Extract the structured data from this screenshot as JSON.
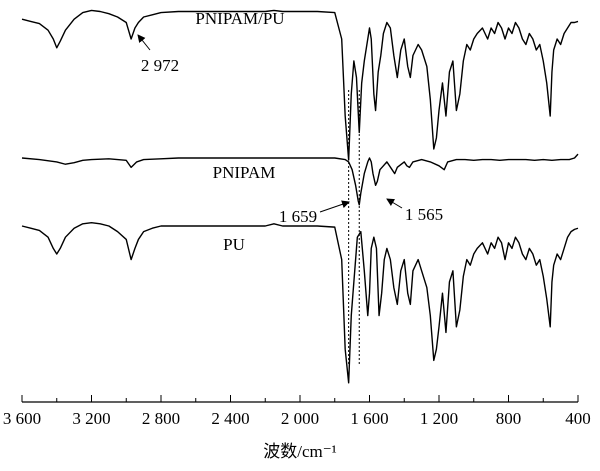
{
  "chart_data": {
    "type": "line",
    "title": "",
    "xlabel": "波数/cm⁻¹",
    "ylabel": "",
    "xlim": [
      3600,
      400
    ],
    "x_reversed": true,
    "grid": false,
    "legend": "none",
    "line_color": "#000000",
    "x_ticks": [
      {
        "value": 3600,
        "label": "3 600"
      },
      {
        "value": 3200,
        "label": "3 200"
      },
      {
        "value": 2800,
        "label": "2 800"
      },
      {
        "value": 2400,
        "label": "2 400"
      },
      {
        "value": 2000,
        "label": "2 000"
      },
      {
        "value": 1600,
        "label": "1 600"
      },
      {
        "value": 1200,
        "label": "1 200"
      },
      {
        "value": 800,
        "label": "800"
      },
      {
        "value": 400,
        "label": "400"
      }
    ],
    "reference_lines": [
      1720,
      1659
    ],
    "series": [
      {
        "name": "PNIPAM/PU",
        "baseline": 0.0,
        "points": [
          [
            3600,
            0.02
          ],
          [
            3550,
            0.04
          ],
          [
            3500,
            0.06
          ],
          [
            3450,
            0.12
          ],
          [
            3420,
            0.2
          ],
          [
            3400,
            0.28
          ],
          [
            3380,
            0.22
          ],
          [
            3350,
            0.12
          ],
          [
            3300,
            0.02
          ],
          [
            3250,
            -0.04
          ],
          [
            3200,
            -0.06
          ],
          [
            3150,
            -0.05
          ],
          [
            3100,
            -0.03
          ],
          [
            3050,
            0.0
          ],
          [
            3000,
            0.05
          ],
          [
            2972,
            0.2
          ],
          [
            2950,
            0.1
          ],
          [
            2930,
            0.05
          ],
          [
            2900,
            0.0
          ],
          [
            2850,
            -0.02
          ],
          [
            2800,
            -0.04
          ],
          [
            2700,
            -0.05
          ],
          [
            2600,
            -0.05
          ],
          [
            2500,
            -0.05
          ],
          [
            2400,
            -0.05
          ],
          [
            2300,
            -0.05
          ],
          [
            2200,
            -0.05
          ],
          [
            2150,
            -0.06
          ],
          [
            2100,
            -0.05
          ],
          [
            2000,
            -0.05
          ],
          [
            1900,
            -0.05
          ],
          [
            1800,
            -0.04
          ],
          [
            1760,
            0.2
          ],
          [
            1740,
            0.9
          ],
          [
            1720,
            1.3
          ],
          [
            1705,
            0.7
          ],
          [
            1690,
            0.4
          ],
          [
            1675,
            0.55
          ],
          [
            1659,
            1.05
          ],
          [
            1645,
            0.6
          ],
          [
            1630,
            0.4
          ],
          [
            1610,
            0.2
          ],
          [
            1600,
            0.1
          ],
          [
            1590,
            0.2
          ],
          [
            1575,
            0.7
          ],
          [
            1565,
            0.85
          ],
          [
            1550,
            0.5
          ],
          [
            1535,
            0.35
          ],
          [
            1520,
            0.15
          ],
          [
            1500,
            0.05
          ],
          [
            1480,
            0.1
          ],
          [
            1460,
            0.35
          ],
          [
            1440,
            0.55
          ],
          [
            1420,
            0.3
          ],
          [
            1400,
            0.2
          ],
          [
            1380,
            0.45
          ],
          [
            1365,
            0.55
          ],
          [
            1350,
            0.35
          ],
          [
            1320,
            0.25
          ],
          [
            1300,
            0.3
          ],
          [
            1270,
            0.45
          ],
          [
            1250,
            0.75
          ],
          [
            1230,
            1.2
          ],
          [
            1215,
            1.1
          ],
          [
            1200,
            0.85
          ],
          [
            1180,
            0.6
          ],
          [
            1160,
            0.9
          ],
          [
            1140,
            0.5
          ],
          [
            1120,
            0.4
          ],
          [
            1100,
            0.85
          ],
          [
            1080,
            0.7
          ],
          [
            1060,
            0.4
          ],
          [
            1040,
            0.25
          ],
          [
            1020,
            0.3
          ],
          [
            1000,
            0.2
          ],
          [
            980,
            0.15
          ],
          [
            950,
            0.1
          ],
          [
            920,
            0.2
          ],
          [
            900,
            0.1
          ],
          [
            880,
            0.15
          ],
          [
            860,
            0.05
          ],
          [
            840,
            0.1
          ],
          [
            820,
            0.2
          ],
          [
            800,
            0.1
          ],
          [
            780,
            0.15
          ],
          [
            760,
            0.05
          ],
          [
            740,
            0.1
          ],
          [
            720,
            0.2
          ],
          [
            700,
            0.25
          ],
          [
            680,
            0.15
          ],
          [
            660,
            0.2
          ],
          [
            640,
            0.3
          ],
          [
            620,
            0.25
          ],
          [
            600,
            0.4
          ],
          [
            580,
            0.6
          ],
          [
            560,
            0.9
          ],
          [
            550,
            0.5
          ],
          [
            540,
            0.3
          ],
          [
            520,
            0.2
          ],
          [
            500,
            0.25
          ],
          [
            480,
            0.15
          ],
          [
            460,
            0.1
          ],
          [
            440,
            0.05
          ],
          [
            420,
            0.05
          ],
          [
            400,
            0.04
          ]
        ]
      },
      {
        "name": "PNIPAM",
        "baseline": 0.0,
        "points": [
          [
            3600,
            0.0
          ],
          [
            3500,
            0.02
          ],
          [
            3400,
            0.05
          ],
          [
            3350,
            0.08
          ],
          [
            3300,
            0.06
          ],
          [
            3250,
            0.03
          ],
          [
            3200,
            0.02
          ],
          [
            3100,
            0.01
          ],
          [
            3000,
            0.03
          ],
          [
            2972,
            0.12
          ],
          [
            2940,
            0.05
          ],
          [
            2900,
            0.02
          ],
          [
            2800,
            0.01
          ],
          [
            2700,
            0.0
          ],
          [
            2600,
            0.0
          ],
          [
            2500,
            0.0
          ],
          [
            2400,
            0.0
          ],
          [
            2300,
            0.0
          ],
          [
            2200,
            0.0
          ],
          [
            2100,
            0.0
          ],
          [
            2000,
            0.0
          ],
          [
            1900,
            0.0
          ],
          [
            1800,
            0.0
          ],
          [
            1740,
            0.02
          ],
          [
            1720,
            0.05
          ],
          [
            1700,
            0.15
          ],
          [
            1680,
            0.35
          ],
          [
            1665,
            0.55
          ],
          [
            1659,
            0.6
          ],
          [
            1650,
            0.45
          ],
          [
            1630,
            0.2
          ],
          [
            1610,
            0.05
          ],
          [
            1600,
            0.0
          ],
          [
            1590,
            0.05
          ],
          [
            1580,
            0.2
          ],
          [
            1565,
            0.35
          ],
          [
            1555,
            0.3
          ],
          [
            1540,
            0.15
          ],
          [
            1520,
            0.1
          ],
          [
            1500,
            0.05
          ],
          [
            1470,
            0.15
          ],
          [
            1455,
            0.2
          ],
          [
            1440,
            0.12
          ],
          [
            1400,
            0.05
          ],
          [
            1385,
            0.1
          ],
          [
            1370,
            0.12
          ],
          [
            1350,
            0.05
          ],
          [
            1300,
            0.02
          ],
          [
            1250,
            0.05
          ],
          [
            1200,
            0.1
          ],
          [
            1170,
            0.15
          ],
          [
            1150,
            0.05
          ],
          [
            1100,
            0.02
          ],
          [
            1050,
            0.02
          ],
          [
            1000,
            0.03
          ],
          [
            950,
            0.02
          ],
          [
            900,
            0.02
          ],
          [
            850,
            0.03
          ],
          [
            800,
            0.02
          ],
          [
            750,
            0.02
          ],
          [
            700,
            0.02
          ],
          [
            650,
            0.03
          ],
          [
            600,
            0.02
          ],
          [
            550,
            0.03
          ],
          [
            500,
            0.02
          ],
          [
            450,
            0.02
          ],
          [
            420,
            0.0
          ],
          [
            400,
            -0.05
          ]
        ]
      },
      {
        "name": "PU",
        "baseline": 0.0,
        "points": [
          [
            3600,
            0.0
          ],
          [
            3550,
            0.02
          ],
          [
            3500,
            0.04
          ],
          [
            3450,
            0.1
          ],
          [
            3420,
            0.2
          ],
          [
            3400,
            0.25
          ],
          [
            3380,
            0.2
          ],
          [
            3350,
            0.1
          ],
          [
            3300,
            0.02
          ],
          [
            3250,
            -0.02
          ],
          [
            3200,
            -0.03
          ],
          [
            3150,
            -0.02
          ],
          [
            3100,
            0.0
          ],
          [
            3050,
            0.05
          ],
          [
            3000,
            0.12
          ],
          [
            2972,
            0.3
          ],
          [
            2950,
            0.2
          ],
          [
            2930,
            0.12
          ],
          [
            2900,
            0.05
          ],
          [
            2850,
            0.02
          ],
          [
            2800,
            0.0
          ],
          [
            2700,
            0.0
          ],
          [
            2600,
            0.0
          ],
          [
            2500,
            0.0
          ],
          [
            2400,
            0.0
          ],
          [
            2300,
            0.0
          ],
          [
            2200,
            0.0
          ],
          [
            2150,
            -0.02
          ],
          [
            2100,
            0.0
          ],
          [
            2000,
            0.0
          ],
          [
            1900,
            0.0
          ],
          [
            1800,
            0.01
          ],
          [
            1760,
            0.3
          ],
          [
            1740,
            1.1
          ],
          [
            1720,
            1.4
          ],
          [
            1705,
            0.8
          ],
          [
            1690,
            0.5
          ],
          [
            1680,
            0.3
          ],
          [
            1670,
            0.1
          ],
          [
            1650,
            0.05
          ],
          [
            1630,
            0.4
          ],
          [
            1610,
            0.8
          ],
          [
            1600,
            0.6
          ],
          [
            1590,
            0.2
          ],
          [
            1575,
            0.1
          ],
          [
            1560,
            0.2
          ],
          [
            1545,
            0.8
          ],
          [
            1530,
            0.6
          ],
          [
            1515,
            0.3
          ],
          [
            1500,
            0.2
          ],
          [
            1480,
            0.3
          ],
          [
            1460,
            0.55
          ],
          [
            1440,
            0.7
          ],
          [
            1420,
            0.4
          ],
          [
            1400,
            0.3
          ],
          [
            1380,
            0.6
          ],
          [
            1365,
            0.7
          ],
          [
            1350,
            0.4
          ],
          [
            1320,
            0.3
          ],
          [
            1300,
            0.4
          ],
          [
            1270,
            0.55
          ],
          [
            1250,
            0.8
          ],
          [
            1230,
            1.2
          ],
          [
            1215,
            1.1
          ],
          [
            1200,
            0.9
          ],
          [
            1180,
            0.6
          ],
          [
            1160,
            0.95
          ],
          [
            1140,
            0.5
          ],
          [
            1120,
            0.4
          ],
          [
            1100,
            0.9
          ],
          [
            1080,
            0.75
          ],
          [
            1060,
            0.45
          ],
          [
            1040,
            0.3
          ],
          [
            1020,
            0.35
          ],
          [
            1000,
            0.25
          ],
          [
            980,
            0.2
          ],
          [
            950,
            0.15
          ],
          [
            920,
            0.25
          ],
          [
            900,
            0.15
          ],
          [
            880,
            0.2
          ],
          [
            860,
            0.1
          ],
          [
            840,
            0.15
          ],
          [
            820,
            0.3
          ],
          [
            800,
            0.15
          ],
          [
            780,
            0.2
          ],
          [
            760,
            0.1
          ],
          [
            740,
            0.15
          ],
          [
            720,
            0.25
          ],
          [
            700,
            0.3
          ],
          [
            680,
            0.2
          ],
          [
            660,
            0.25
          ],
          [
            640,
            0.35
          ],
          [
            620,
            0.3
          ],
          [
            600,
            0.45
          ],
          [
            580,
            0.65
          ],
          [
            560,
            0.9
          ],
          [
            550,
            0.5
          ],
          [
            540,
            0.35
          ],
          [
            520,
            0.25
          ],
          [
            500,
            0.3
          ],
          [
            480,
            0.2
          ],
          [
            460,
            0.1
          ],
          [
            440,
            0.05
          ],
          [
            420,
            0.03
          ],
          [
            400,
            0.02
          ]
        ]
      }
    ],
    "annotations": [
      {
        "label": "2 972"
      },
      {
        "label": "1 659"
      },
      {
        "label": "1 565"
      }
    ]
  }
}
